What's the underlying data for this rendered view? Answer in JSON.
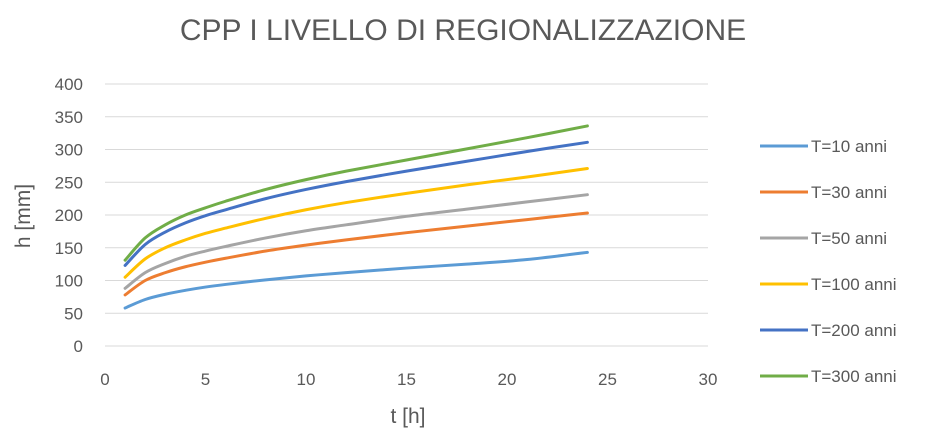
{
  "chart_data": {
    "type": "line",
    "title": "CPP I LIVELLO DI REGIONALIZZAZIONE",
    "xlabel": "t [h]",
    "ylabel": "h [mm]",
    "xlim": [
      0,
      30
    ],
    "ylim": [
      0,
      400
    ],
    "xticks": [
      0,
      5,
      10,
      15,
      20,
      25,
      30
    ],
    "yticks": [
      0,
      50,
      100,
      150,
      200,
      250,
      300,
      350,
      400
    ],
    "grid": "horizontal",
    "legend_position": "right",
    "x": [
      1,
      2,
      3,
      4,
      5,
      6,
      8,
      10,
      12,
      15,
      18,
      21,
      24
    ],
    "series": [
      {
        "name": "T=10 anni",
        "color": "#5b9bd5",
        "values": [
          58,
          71,
          79,
          85,
          90,
          94,
          101,
          107,
          112,
          119,
          125,
          132,
          143
        ]
      },
      {
        "name": "T=30 anni",
        "color": "#ed7d31",
        "values": [
          78,
          100,
          112,
          121,
          128,
          134,
          145,
          154,
          162,
          173,
          183,
          193,
          203
        ]
      },
      {
        "name": "T=50 anni",
        "color": "#a5a5a5",
        "values": [
          88,
          112,
          126,
          137,
          145,
          152,
          165,
          176,
          185,
          198,
          209,
          220,
          231
        ]
      },
      {
        "name": "T=100 anni",
        "color": "#ffc000",
        "values": [
          105,
          133,
          150,
          162,
          172,
          180,
          195,
          208,
          219,
          233,
          246,
          258,
          271
        ]
      },
      {
        "name": "T=200 anni",
        "color": "#4472c4",
        "values": [
          123,
          155,
          174,
          188,
          199,
          208,
          225,
          239,
          251,
          267,
          282,
          297,
          311
        ]
      },
      {
        "name": "T=300 anni",
        "color": "#70ad47",
        "values": [
          131,
          165,
          185,
          200,
          211,
          221,
          239,
          254,
          267,
          284,
          301,
          318,
          336
        ]
      }
    ]
  }
}
